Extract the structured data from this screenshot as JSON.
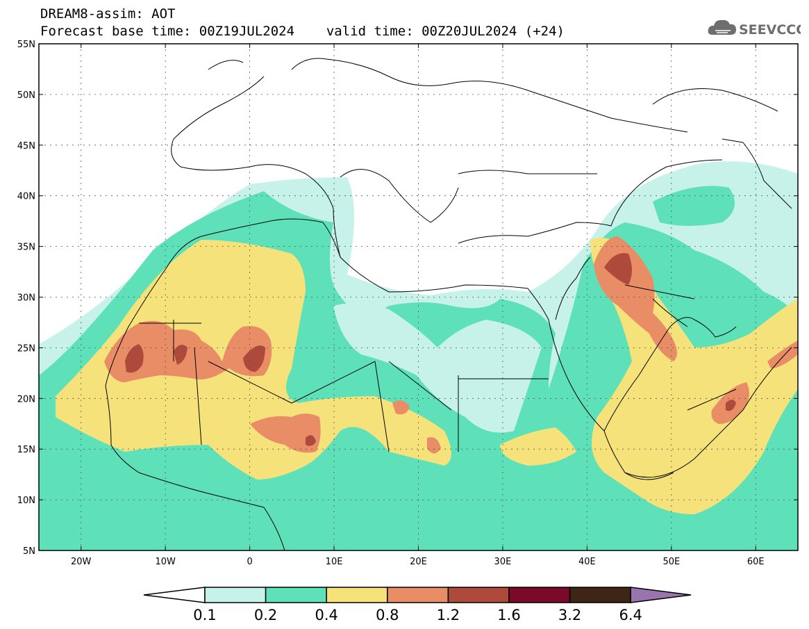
{
  "header": {
    "title_line1": "DREAM8-assim: AOT",
    "base_time_label": "Forecast base time: 00Z19JUL2024",
    "valid_time_label": "valid time: 00Z20JUL2024 (+24)"
  },
  "logo": {
    "text": "SEEVCCC",
    "icon": "cloud-icon"
  },
  "map": {
    "lon_range": [
      -25,
      65
    ],
    "lat_range": [
      5,
      55
    ],
    "lat_ticks": [
      {
        "value": 55,
        "label": "55N"
      },
      {
        "value": 50,
        "label": "50N"
      },
      {
        "value": 45,
        "label": "45N"
      },
      {
        "value": 40,
        "label": "40N"
      },
      {
        "value": 35,
        "label": "35N"
      },
      {
        "value": 30,
        "label": "30N"
      },
      {
        "value": 25,
        "label": "25N"
      },
      {
        "value": 20,
        "label": "20N"
      },
      {
        "value": 15,
        "label": "15N"
      },
      {
        "value": 10,
        "label": "10N"
      },
      {
        "value": 5,
        "label": "5N"
      }
    ],
    "lon_ticks": [
      {
        "value": -20,
        "label": "20W"
      },
      {
        "value": -10,
        "label": "10W"
      },
      {
        "value": 0,
        "label": "0"
      },
      {
        "value": 10,
        "label": "10E"
      },
      {
        "value": 20,
        "label": "20E"
      },
      {
        "value": 30,
        "label": "30E"
      },
      {
        "value": 40,
        "label": "40E"
      },
      {
        "value": 50,
        "label": "50E"
      },
      {
        "value": 60,
        "label": "60E"
      }
    ],
    "gridlines": true
  },
  "colorbar": {
    "bins": [
      {
        "color": "#c6f2ea"
      },
      {
        "color": "#5ee0b8"
      },
      {
        "color": "#f5e27a"
      },
      {
        "color": "#e98d67"
      },
      {
        "color": "#ad4a3b"
      },
      {
        "color": "#7b0a2a"
      },
      {
        "color": "#3e2515"
      }
    ],
    "left_arrow_color": "#ffffff",
    "right_arrow_color": "#9a74ad",
    "labels": [
      "0.1",
      "0.2",
      "0.4",
      "0.8",
      "1.2",
      "1.6",
      "3.2",
      "6.4"
    ]
  }
}
